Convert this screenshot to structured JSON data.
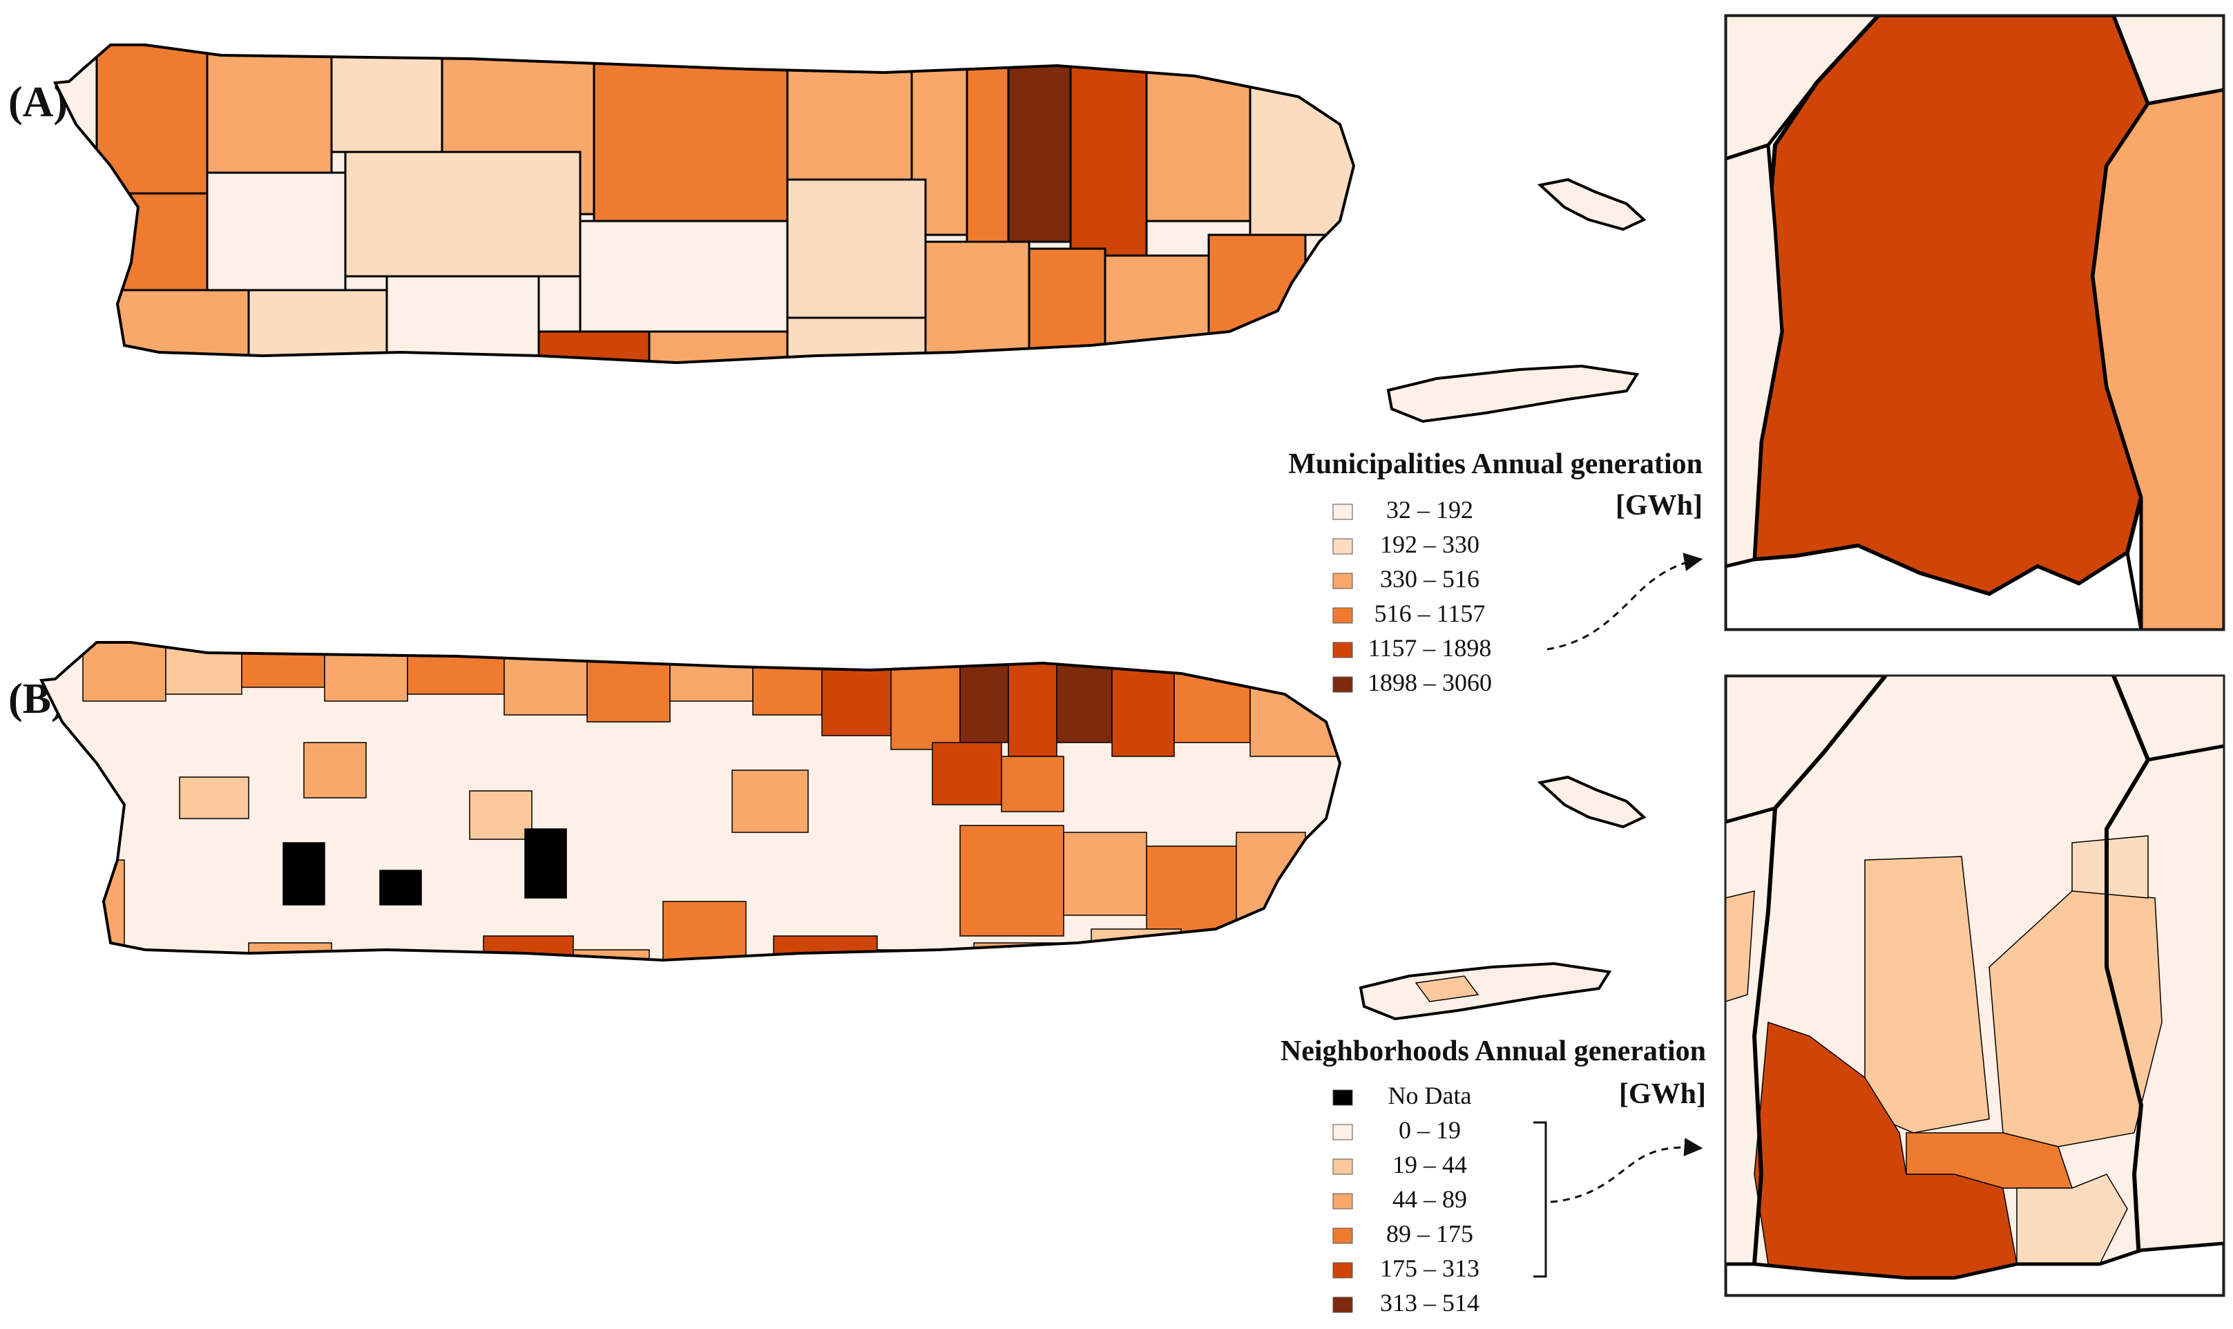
{
  "panels": [
    {
      "label": "(A)",
      "legend_title": "Municipalities Annual generation",
      "legend_unit": "[GWh]",
      "classes": [
        {
          "label": "32 – 192",
          "color": "#fdf0e6"
        },
        {
          "label": "192 – 330",
          "color": "#fcdcbf"
        },
        {
          "label": "330 – 516",
          "color": "#f7a86a"
        },
        {
          "label": "516 – 1157",
          "color": "#ee7b30"
        },
        {
          "label": "1157 – 1898",
          "color": "#cf4508"
        },
        {
          "label": "1898 – 3060",
          "color": "#7e2a0c"
        }
      ]
    },
    {
      "label": "(B)",
      "legend_title": "Neighborhoods Annual generation",
      "legend_unit": "[GWh]",
      "classes": [
        {
          "label": "No Data",
          "color": "#000000"
        },
        {
          "label": "0 – 19",
          "color": "#fdf0e6"
        },
        {
          "label": "19 – 44",
          "color": "#fcc99c"
        },
        {
          "label": "44 – 89",
          "color": "#f7a86a"
        },
        {
          "label": "89 – 175",
          "color": "#ee7b30"
        },
        {
          "label": "175 – 313",
          "color": "#cf4508"
        },
        {
          "label": "313 – 514",
          "color": "#7e2a0c"
        }
      ]
    }
  ],
  "colors": {
    "island_outline": "#000000",
    "inset_border": "#222222",
    "background": "#ffffff"
  }
}
